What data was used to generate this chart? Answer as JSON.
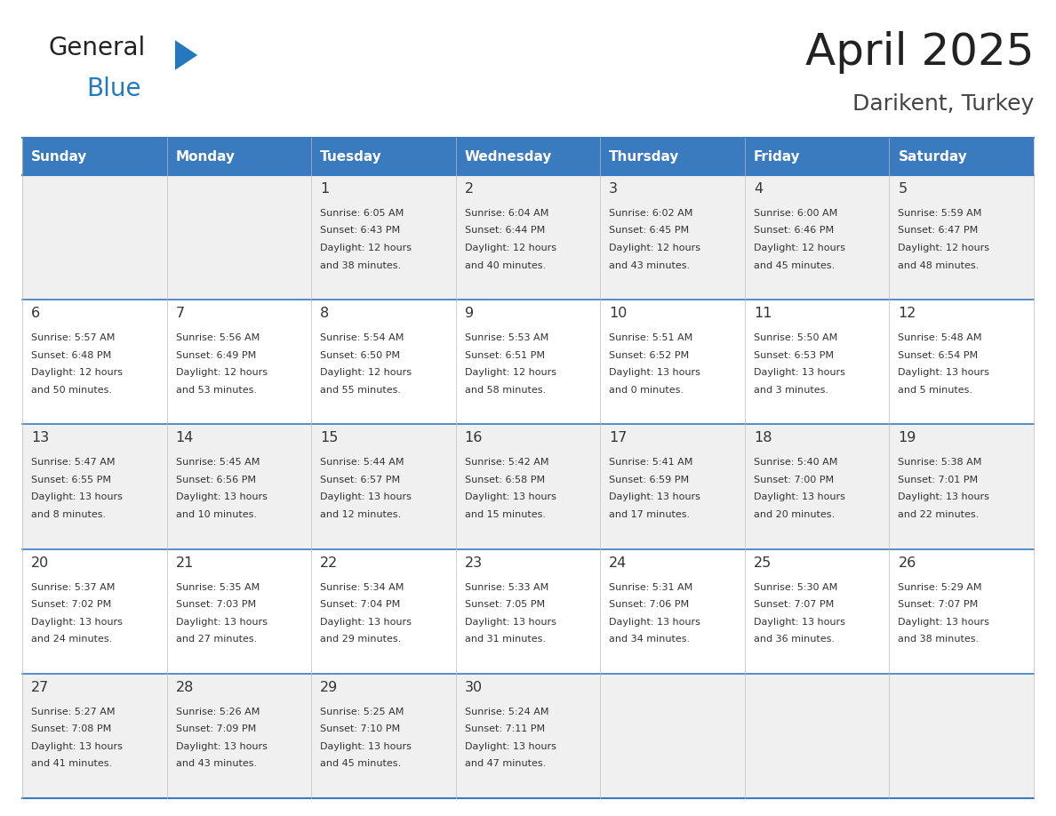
{
  "title": "April 2025",
  "subtitle": "Darikent, Turkey",
  "days_of_week": [
    "Sunday",
    "Monday",
    "Tuesday",
    "Wednesday",
    "Thursday",
    "Friday",
    "Saturday"
  ],
  "header_bg": "#3a7bbf",
  "header_text": "#ffffff",
  "row_bg_even": "#f0f0f0",
  "row_bg_odd": "#ffffff",
  "day_num_color": "#333333",
  "info_color": "#333333",
  "grid_line_color": "#3a7bbf",
  "title_color": "#222222",
  "subtitle_color": "#444444",
  "logo_general_color": "#222222",
  "logo_blue_color": "#2478be",
  "calendar_data": [
    {
      "day": 1,
      "col": 2,
      "row": 0,
      "sunrise": "6:05 AM",
      "sunset": "6:43 PM",
      "daylight_l1": "Daylight: 12 hours",
      "daylight_l2": "and 38 minutes."
    },
    {
      "day": 2,
      "col": 3,
      "row": 0,
      "sunrise": "6:04 AM",
      "sunset": "6:44 PM",
      "daylight_l1": "Daylight: 12 hours",
      "daylight_l2": "and 40 minutes."
    },
    {
      "day": 3,
      "col": 4,
      "row": 0,
      "sunrise": "6:02 AM",
      "sunset": "6:45 PM",
      "daylight_l1": "Daylight: 12 hours",
      "daylight_l2": "and 43 minutes."
    },
    {
      "day": 4,
      "col": 5,
      "row": 0,
      "sunrise": "6:00 AM",
      "sunset": "6:46 PM",
      "daylight_l1": "Daylight: 12 hours",
      "daylight_l2": "and 45 minutes."
    },
    {
      "day": 5,
      "col": 6,
      "row": 0,
      "sunrise": "5:59 AM",
      "sunset": "6:47 PM",
      "daylight_l1": "Daylight: 12 hours",
      "daylight_l2": "and 48 minutes."
    },
    {
      "day": 6,
      "col": 0,
      "row": 1,
      "sunrise": "5:57 AM",
      "sunset": "6:48 PM",
      "daylight_l1": "Daylight: 12 hours",
      "daylight_l2": "and 50 minutes."
    },
    {
      "day": 7,
      "col": 1,
      "row": 1,
      "sunrise": "5:56 AM",
      "sunset": "6:49 PM",
      "daylight_l1": "Daylight: 12 hours",
      "daylight_l2": "and 53 minutes."
    },
    {
      "day": 8,
      "col": 2,
      "row": 1,
      "sunrise": "5:54 AM",
      "sunset": "6:50 PM",
      "daylight_l1": "Daylight: 12 hours",
      "daylight_l2": "and 55 minutes."
    },
    {
      "day": 9,
      "col": 3,
      "row": 1,
      "sunrise": "5:53 AM",
      "sunset": "6:51 PM",
      "daylight_l1": "Daylight: 12 hours",
      "daylight_l2": "and 58 minutes."
    },
    {
      "day": 10,
      "col": 4,
      "row": 1,
      "sunrise": "5:51 AM",
      "sunset": "6:52 PM",
      "daylight_l1": "Daylight: 13 hours",
      "daylight_l2": "and 0 minutes."
    },
    {
      "day": 11,
      "col": 5,
      "row": 1,
      "sunrise": "5:50 AM",
      "sunset": "6:53 PM",
      "daylight_l1": "Daylight: 13 hours",
      "daylight_l2": "and 3 minutes."
    },
    {
      "day": 12,
      "col": 6,
      "row": 1,
      "sunrise": "5:48 AM",
      "sunset": "6:54 PM",
      "daylight_l1": "Daylight: 13 hours",
      "daylight_l2": "and 5 minutes."
    },
    {
      "day": 13,
      "col": 0,
      "row": 2,
      "sunrise": "5:47 AM",
      "sunset": "6:55 PM",
      "daylight_l1": "Daylight: 13 hours",
      "daylight_l2": "and 8 minutes."
    },
    {
      "day": 14,
      "col": 1,
      "row": 2,
      "sunrise": "5:45 AM",
      "sunset": "6:56 PM",
      "daylight_l1": "Daylight: 13 hours",
      "daylight_l2": "and 10 minutes."
    },
    {
      "day": 15,
      "col": 2,
      "row": 2,
      "sunrise": "5:44 AM",
      "sunset": "6:57 PM",
      "daylight_l1": "Daylight: 13 hours",
      "daylight_l2": "and 12 minutes."
    },
    {
      "day": 16,
      "col": 3,
      "row": 2,
      "sunrise": "5:42 AM",
      "sunset": "6:58 PM",
      "daylight_l1": "Daylight: 13 hours",
      "daylight_l2": "and 15 minutes."
    },
    {
      "day": 17,
      "col": 4,
      "row": 2,
      "sunrise": "5:41 AM",
      "sunset": "6:59 PM",
      "daylight_l1": "Daylight: 13 hours",
      "daylight_l2": "and 17 minutes."
    },
    {
      "day": 18,
      "col": 5,
      "row": 2,
      "sunrise": "5:40 AM",
      "sunset": "7:00 PM",
      "daylight_l1": "Daylight: 13 hours",
      "daylight_l2": "and 20 minutes."
    },
    {
      "day": 19,
      "col": 6,
      "row": 2,
      "sunrise": "5:38 AM",
      "sunset": "7:01 PM",
      "daylight_l1": "Daylight: 13 hours",
      "daylight_l2": "and 22 minutes."
    },
    {
      "day": 20,
      "col": 0,
      "row": 3,
      "sunrise": "5:37 AM",
      "sunset": "7:02 PM",
      "daylight_l1": "Daylight: 13 hours",
      "daylight_l2": "and 24 minutes."
    },
    {
      "day": 21,
      "col": 1,
      "row": 3,
      "sunrise": "5:35 AM",
      "sunset": "7:03 PM",
      "daylight_l1": "Daylight: 13 hours",
      "daylight_l2": "and 27 minutes."
    },
    {
      "day": 22,
      "col": 2,
      "row": 3,
      "sunrise": "5:34 AM",
      "sunset": "7:04 PM",
      "daylight_l1": "Daylight: 13 hours",
      "daylight_l2": "and 29 minutes."
    },
    {
      "day": 23,
      "col": 3,
      "row": 3,
      "sunrise": "5:33 AM",
      "sunset": "7:05 PM",
      "daylight_l1": "Daylight: 13 hours",
      "daylight_l2": "and 31 minutes."
    },
    {
      "day": 24,
      "col": 4,
      "row": 3,
      "sunrise": "5:31 AM",
      "sunset": "7:06 PM",
      "daylight_l1": "Daylight: 13 hours",
      "daylight_l2": "and 34 minutes."
    },
    {
      "day": 25,
      "col": 5,
      "row": 3,
      "sunrise": "5:30 AM",
      "sunset": "7:07 PM",
      "daylight_l1": "Daylight: 13 hours",
      "daylight_l2": "and 36 minutes."
    },
    {
      "day": 26,
      "col": 6,
      "row": 3,
      "sunrise": "5:29 AM",
      "sunset": "7:07 PM",
      "daylight_l1": "Daylight: 13 hours",
      "daylight_l2": "and 38 minutes."
    },
    {
      "day": 27,
      "col": 0,
      "row": 4,
      "sunrise": "5:27 AM",
      "sunset": "7:08 PM",
      "daylight_l1": "Daylight: 13 hours",
      "daylight_l2": "and 41 minutes."
    },
    {
      "day": 28,
      "col": 1,
      "row": 4,
      "sunrise": "5:26 AM",
      "sunset": "7:09 PM",
      "daylight_l1": "Daylight: 13 hours",
      "daylight_l2": "and 43 minutes."
    },
    {
      "day": 29,
      "col": 2,
      "row": 4,
      "sunrise": "5:25 AM",
      "sunset": "7:10 PM",
      "daylight_l1": "Daylight: 13 hours",
      "daylight_l2": "and 45 minutes."
    },
    {
      "day": 30,
      "col": 3,
      "row": 4,
      "sunrise": "5:24 AM",
      "sunset": "7:11 PM",
      "daylight_l1": "Daylight: 13 hours",
      "daylight_l2": "and 47 minutes."
    }
  ]
}
